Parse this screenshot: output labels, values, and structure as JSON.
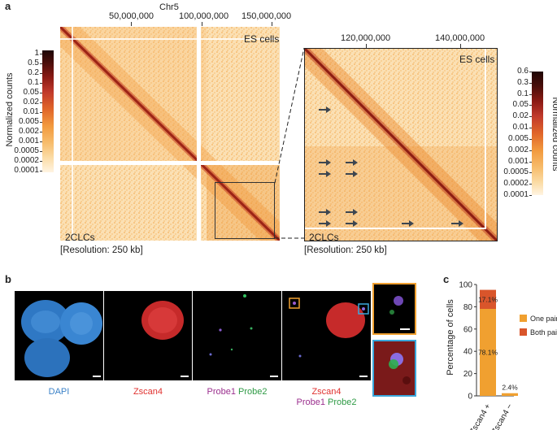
{
  "panel_a": {
    "letter": "a",
    "chromosome": "Chr5",
    "top_ticks": [
      "50,000,000",
      "100,000,000",
      "150,000,000"
    ],
    "zoom_ticks": [
      "120,000,000",
      "140,000,000"
    ],
    "upper_label": "ES cells",
    "lower_label": "2CLCs",
    "resolution_left": "[Resolution: 250 kb]",
    "resolution_right": "[Resolution: 250 kb]",
    "left_colorbar_title": "Normalized counts",
    "left_colorbar_ticks": [
      "1",
      "0.5",
      "0.2",
      "0.1",
      "0.05",
      "0.02",
      "0.01",
      "0.005",
      "0.002",
      "0.001",
      "0.0005",
      "0.0002",
      "0.0001"
    ],
    "right_colorbar_title": "Normalized counts",
    "right_colorbar_ticks": [
      "0.6",
      "0.3",
      "0.1",
      "0.05",
      "0.02",
      "0.01",
      "0.005",
      "0.002",
      "0.001",
      "0.0005",
      "0.0002",
      "0.0001"
    ],
    "colors": {
      "low": "#fde9c8",
      "mid": "#f5a442",
      "high": "#a8201a",
      "max": "#2a0a08"
    }
  },
  "panel_b": {
    "letter": "b",
    "channels": [
      {
        "label": "DAPI",
        "color": "#3b82c8"
      },
      {
        "label": "Zscan4",
        "color": "#e0312f"
      },
      {
        "label_a": "Probe1",
        "label_b": "Probe2",
        "color_a": "#9b2f8e",
        "color_b": "#2e9a45"
      },
      {
        "label_top": "Zscan4",
        "label_a": "Probe1",
        "label_b": "Probe2"
      }
    ],
    "inset_colors": {
      "orange": "#f0a030",
      "blue": "#3aa7dc"
    }
  },
  "panel_c": {
    "letter": "c",
    "chart_data": {
      "type": "bar",
      "stacked": true,
      "categories": [
        "Zscan4 +",
        "Zscan4 −"
      ],
      "series": [
        {
          "name": "One pair",
          "color": "#f0a030",
          "values": [
            78.1,
            2.4
          ]
        },
        {
          "name": "Both pairs",
          "color": "#d9552b",
          "values": [
            17.1,
            0
          ]
        }
      ],
      "data_labels": [
        "78.1%",
        "17.1%",
        "2.4%"
      ],
      "ylabel": "Percentage of cells",
      "ylim": [
        0,
        100
      ],
      "yticks": [
        "0",
        "20",
        "40",
        "60",
        "80",
        "100"
      ],
      "legend_position": "right"
    }
  }
}
